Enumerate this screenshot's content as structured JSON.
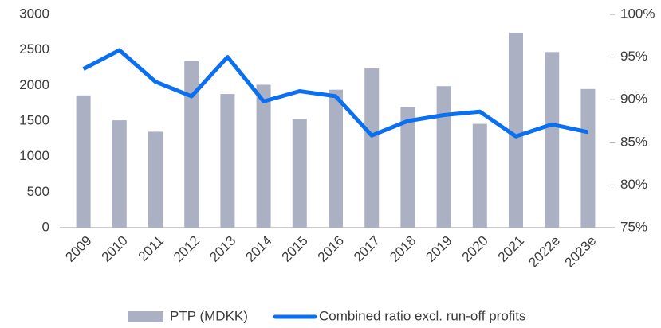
{
  "chart_data": {
    "type": "bar-line",
    "categories": [
      "2009",
      "2010",
      "2011",
      "2012",
      "2013",
      "2014",
      "2015",
      "2016",
      "2017",
      "2018",
      "2019",
      "2020",
      "2021",
      "2022e",
      "2023e"
    ],
    "series": [
      {
        "name": "PTP (MDKK)",
        "type": "bar",
        "color": "#abb1c3",
        "values": [
          1860,
          1510,
          1350,
          2340,
          1880,
          2010,
          1530,
          1940,
          2240,
          1700,
          1990,
          1460,
          2740,
          2470,
          1950
        ]
      },
      {
        "name": "Combined ratio excl. run-off profits",
        "type": "line",
        "axis": "y2",
        "color": "#0b6ff2",
        "values": [
          93.6,
          95.8,
          92.1,
          90.4,
          95.0,
          89.8,
          91.0,
          90.4,
          85.8,
          87.5,
          88.2,
          88.6,
          85.7,
          87.1,
          86.2
        ]
      }
    ],
    "ylim": [
      0,
      3000
    ],
    "yticks": [
      0,
      500,
      1000,
      1500,
      2000,
      2500,
      3000
    ],
    "y2lim": [
      75,
      100
    ],
    "y2ticks": [
      {
        "value": 75,
        "label": "75%"
      },
      {
        "value": 80,
        "label": "80%"
      },
      {
        "value": 85,
        "label": "85%"
      },
      {
        "value": 90,
        "label": "90%"
      },
      {
        "value": 95,
        "label": "95%"
      },
      {
        "value": 100,
        "label": "100%"
      }
    ],
    "grid": false,
    "legend": "bottom"
  }
}
